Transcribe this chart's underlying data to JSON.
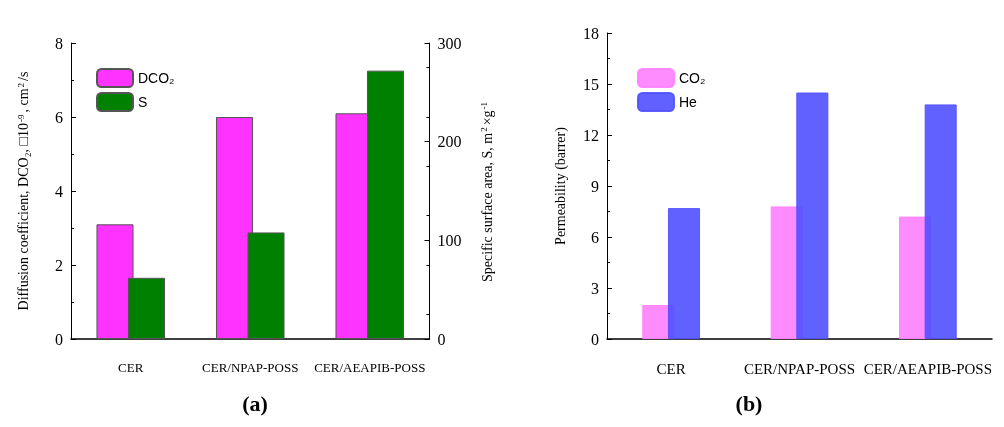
{
  "chart_data": [
    {
      "type": "bar",
      "title": "(a)",
      "categories": [
        "CER",
        "CER/NPAP-POSS",
        "CER/AEAPIB-POSS"
      ],
      "ylabel": "Diffusion coefficient, DCO₂, □10$^{-9}$, cm$^{2}$/s",
      "y2label": "Specific surface area, S, m$^{2}$×g$^{-1}$",
      "series": [
        {
          "name": "DCO₂",
          "color": "#ff33ff",
          "values": [
            3.1,
            6.0,
            6.1
          ]
        },
        {
          "name": "S",
          "color": "#008000",
          "values": [
            62,
            108,
            272
          ],
          "axis": "y2"
        }
      ],
      "ylim": [
        0,
        8
      ],
      "yticks": [
        0,
        2,
        4,
        6,
        8
      ],
      "y2lim": [
        0,
        300
      ],
      "y2ticks": [
        0,
        100,
        200,
        300
      ],
      "grid": false,
      "legend": "top left"
    },
    {
      "type": "bar",
      "title": "(b)",
      "categories": [
        "CER",
        "CER/NPAP-POSS",
        "CER/AEAPIB-POSS"
      ],
      "ylabel": "Permeability (barrer)",
      "series": [
        {
          "name": "CO₂",
          "color": "#ff80ff",
          "values": [
            2.0,
            7.8,
            7.2
          ]
        },
        {
          "name": "He",
          "color": "#5050ff",
          "values": [
            7.7,
            14.5,
            13.8
          ]
        }
      ],
      "ylim": [
        0,
        18
      ],
      "yticks": [
        0,
        3,
        6,
        9,
        12,
        15,
        18
      ],
      "grid": false,
      "legend": "top left"
    }
  ]
}
